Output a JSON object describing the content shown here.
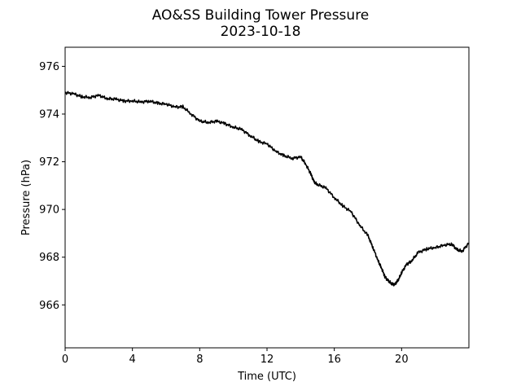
{
  "chart_data": {
    "type": "line",
    "title": "AO&SS Building Tower Pressure",
    "subtitle": "2023-10-18",
    "xlabel": "Time (UTC)",
    "ylabel": "Pressure (hPa)",
    "xlim": [
      0,
      24
    ],
    "ylim": [
      964.2,
      976.8
    ],
    "xticks": [
      0,
      4,
      8,
      12,
      16,
      20
    ],
    "yticks": [
      966,
      968,
      970,
      972,
      974,
      976
    ],
    "grid": false,
    "line_color": "#000000",
    "series": [
      {
        "x": [
          0.0,
          0.5,
          1.0,
          1.5,
          2.0,
          2.5,
          3.0,
          3.5,
          4.0,
          4.5,
          5.0,
          5.5,
          6.0,
          6.5,
          7.0,
          7.5,
          8.0,
          8.5,
          9.0,
          9.5,
          10.0,
          10.5,
          11.0,
          11.5,
          12.0,
          12.5,
          13.0,
          13.5,
          14.0,
          14.3,
          14.6,
          14.8,
          15.0,
          15.5,
          16.0,
          16.5,
          17.0,
          17.5,
          18.0,
          18.3,
          18.6,
          18.8,
          19.0,
          19.2,
          19.4,
          19.6,
          19.8,
          20.0,
          20.3,
          20.6,
          21.0,
          21.5,
          22.0,
          22.5,
          23.0,
          23.3,
          23.6,
          24.0
        ],
        "y": [
          974.9,
          974.85,
          974.72,
          974.7,
          974.78,
          974.65,
          974.62,
          974.55,
          974.55,
          974.5,
          974.55,
          974.45,
          974.42,
          974.3,
          974.3,
          974.0,
          973.7,
          973.65,
          973.7,
          973.6,
          973.45,
          973.35,
          973.1,
          972.85,
          972.75,
          972.45,
          972.25,
          972.15,
          972.2,
          971.9,
          971.5,
          971.15,
          971.05,
          970.9,
          970.5,
          970.15,
          969.9,
          969.35,
          968.9,
          968.4,
          967.85,
          967.55,
          967.2,
          967.0,
          966.9,
          966.85,
          967.05,
          967.35,
          967.7,
          967.85,
          968.2,
          968.35,
          968.4,
          968.5,
          968.55,
          968.3,
          968.25,
          968.6
        ]
      }
    ]
  }
}
